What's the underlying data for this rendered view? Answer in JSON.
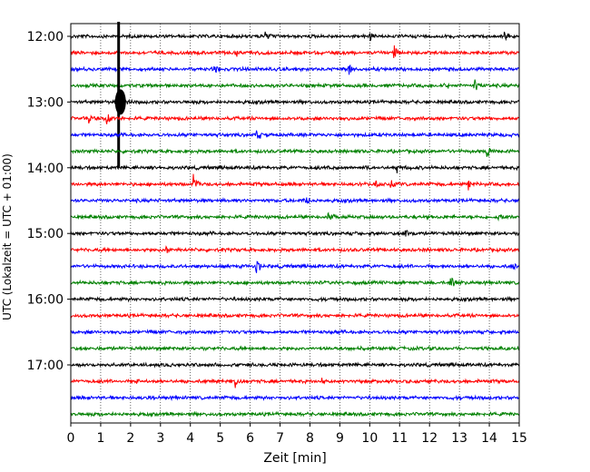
{
  "chart_data": {
    "type": "line",
    "title": "",
    "xlabel": "Zeit  [min]",
    "ylabel": "UTC (Lokalzeit = UTC + 01:00)",
    "xlim": [
      0,
      15
    ],
    "x_ticks": [
      0,
      1,
      2,
      3,
      4,
      5,
      6,
      7,
      8,
      9,
      10,
      11,
      12,
      13,
      14,
      15
    ],
    "x_tick_labels": [
      "0",
      "1",
      "2",
      "3",
      "4",
      "5",
      "6",
      "7",
      "8",
      "9",
      "10",
      "11",
      "12",
      "13",
      "14",
      "15"
    ],
    "y_tick_labels": [
      "12:00",
      "13:00",
      "14:00",
      "15:00",
      "16:00",
      "17:00"
    ],
    "x_grid": "dotted",
    "colors": [
      "#000000",
      "#ff0000",
      "#0000ff",
      "#008000"
    ],
    "rows": [
      {
        "start": "12:00",
        "color": "#000000",
        "events": [
          {
            "t": 6.5,
            "amp": 0.35
          },
          {
            "t": 10.0,
            "amp": 0.3
          },
          {
            "t": 14.5,
            "amp": 0.35
          }
        ]
      },
      {
        "start": "12:15",
        "color": "#ff0000",
        "events": [
          {
            "t": 5.5,
            "amp": 0.35
          },
          {
            "t": 10.8,
            "amp": 0.6
          }
        ]
      },
      {
        "start": "12:30",
        "color": "#0000ff",
        "events": [
          {
            "t": 4.8,
            "amp": 0.25
          },
          {
            "t": 9.3,
            "amp": 0.45
          }
        ]
      },
      {
        "start": "12:45",
        "color": "#008000",
        "events": [
          {
            "t": 12.5,
            "amp": 0.35
          },
          {
            "t": 13.5,
            "amp": 0.5
          }
        ]
      },
      {
        "start": "13:00",
        "color": "#000000",
        "events": [
          {
            "t": 1.6,
            "amp": 1.2
          }
        ]
      },
      {
        "start": "13:15",
        "color": "#ff0000",
        "events": [
          {
            "t": 0.6,
            "amp": 0.3
          },
          {
            "t": 1.2,
            "amp": 0.45
          }
        ]
      },
      {
        "start": "13:30",
        "color": "#0000ff",
        "events": [
          {
            "t": 6.2,
            "amp": 0.45
          }
        ]
      },
      {
        "start": "13:45",
        "color": "#008000",
        "events": [
          {
            "t": 13.9,
            "amp": 0.55
          }
        ]
      },
      {
        "start": "14:00",
        "color": "#000000",
        "events": [
          {
            "t": 8.7,
            "amp": 0.3
          },
          {
            "t": 9.9,
            "amp": 0.3
          },
          {
            "t": 10.9,
            "amp": 0.3
          }
        ]
      },
      {
        "start": "14:15",
        "color": "#ff0000",
        "events": [
          {
            "t": 4.1,
            "amp": 0.55
          },
          {
            "t": 10.2,
            "amp": 0.35
          },
          {
            "t": 10.7,
            "amp": 0.35
          },
          {
            "t": 13.3,
            "amp": 0.3
          }
        ]
      },
      {
        "start": "14:30",
        "color": "#0000ff",
        "events": [
          {
            "t": 7.8,
            "amp": 0.55
          }
        ]
      },
      {
        "start": "14:45",
        "color": "#008000",
        "events": [
          {
            "t": 8.6,
            "amp": 0.4
          },
          {
            "t": 14.3,
            "amp": 0.3
          }
        ]
      },
      {
        "start": "15:00",
        "color": "#000000",
        "events": [
          {
            "t": 11.2,
            "amp": 0.3
          }
        ]
      },
      {
        "start": "15:15",
        "color": "#ff0000",
        "events": [
          {
            "t": 3.2,
            "amp": 0.3
          }
        ]
      },
      {
        "start": "15:30",
        "color": "#0000ff",
        "events": [
          {
            "t": 6.2,
            "amp": 0.6
          },
          {
            "t": 14.8,
            "amp": 0.3
          }
        ]
      },
      {
        "start": "15:45",
        "color": "#008000",
        "events": [
          {
            "t": 12.7,
            "amp": 0.6
          }
        ]
      },
      {
        "start": "16:00",
        "color": "#000000",
        "events": []
      },
      {
        "start": "16:15",
        "color": "#ff0000",
        "events": []
      },
      {
        "start": "16:30",
        "color": "#0000ff",
        "events": []
      },
      {
        "start": "16:45",
        "color": "#008000",
        "events": []
      },
      {
        "start": "17:00",
        "color": "#000000",
        "events": []
      },
      {
        "start": "17:15",
        "color": "#ff0000",
        "events": [
          {
            "t": 2.2,
            "amp": 0.2
          },
          {
            "t": 5.5,
            "amp": 0.4
          },
          {
            "t": 8.4,
            "amp": 0.2
          }
        ]
      },
      {
        "start": "17:30",
        "color": "#0000ff",
        "events": [
          {
            "t": 2.6,
            "amp": 0.2
          }
        ]
      },
      {
        "start": "17:45",
        "color": "#008000",
        "events": []
      }
    ]
  }
}
